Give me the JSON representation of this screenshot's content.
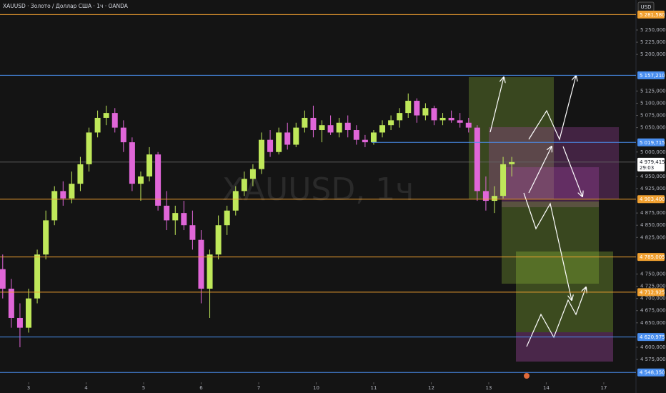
{
  "chart_data": {
    "type": "candlestick",
    "title": "XAUUSD · Золото / Доллар США · 1ч · OANDA",
    "watermark": "XAUUSD, 1ч",
    "currency": "USD",
    "up_color": "#bfe85a",
    "down_color": "#e066d8",
    "xlim": [
      -0.497,
      10.56
    ],
    "xticks": [
      {
        "value": 0,
        "label": "3"
      },
      {
        "value": 1,
        "label": "4"
      },
      {
        "value": 2,
        "label": "5"
      },
      {
        "value": 3,
        "label": "6"
      },
      {
        "value": 4,
        "label": "7"
      },
      {
        "value": 5,
        "label": "10"
      },
      {
        "value": 6,
        "label": "11"
      },
      {
        "value": 7,
        "label": "12"
      },
      {
        "value": 8,
        "label": "13"
      },
      {
        "value": 9,
        "label": "14"
      },
      {
        "value": 10,
        "label": "17"
      }
    ],
    "ylim": [
      4528.2,
      5311.5
    ],
    "yticks": [
      {
        "value": 5250,
        "label": "5 250,000"
      },
      {
        "value": 5225,
        "label": "5 225,000"
      },
      {
        "value": 5200,
        "label": "5 200,000"
      },
      {
        "value": 5125,
        "label": "5 125,000"
      },
      {
        "value": 5100,
        "label": "5 100,000"
      },
      {
        "value": 5075,
        "label": "5 075,000"
      },
      {
        "value": 5050,
        "label": "5 050,000"
      },
      {
        "value": 5000,
        "label": "5 000,000"
      },
      {
        "value": 4950,
        "label": "4 950,000"
      },
      {
        "value": 4925,
        "label": "4 925,000"
      },
      {
        "value": 4875,
        "label": "4 875,000"
      },
      {
        "value": 4850,
        "label": "4 850,000"
      },
      {
        "value": 4825,
        "label": "4 825,000"
      },
      {
        "value": 4750,
        "label": "4 750,000"
      },
      {
        "value": 4725,
        "label": "4 725,000"
      },
      {
        "value": 4700,
        "label": "4 700,000"
      },
      {
        "value": 4675,
        "label": "4 675,000"
      },
      {
        "value": 4650,
        "label": "4 650,000"
      },
      {
        "value": 4600,
        "label": "4 600,000"
      },
      {
        "value": 4575,
        "label": "4 575,000"
      }
    ],
    "levels": [
      {
        "value": 5281.58,
        "label": "5 281,580",
        "color": "#f0a030"
      },
      {
        "value": 5157.21,
        "label": "5 157,210",
        "color": "#4a8ff0"
      },
      {
        "value": 5019.715,
        "label": "5 019,715",
        "color": "#4a8ff0"
      },
      {
        "value": 4903.4,
        "label": "4 903,400",
        "color": "#f0a030"
      },
      {
        "value": 4785.005,
        "label": "4 785,005",
        "color": "#f0a030"
      },
      {
        "value": 4712.925,
        "label": "4 712,925",
        "color": "#f0a030"
      },
      {
        "value": 4620.975,
        "label": "4 620,975",
        "color": "#4a8ff0"
      },
      {
        "value": 4548.35,
        "label": "4 548,350",
        "color": "#4a8ff0"
      }
    ],
    "current_price": {
      "value": 4979.415,
      "label": "4 979,415",
      "countdown": "29:03"
    },
    "x": [
      -0.45,
      -0.3,
      -0.15,
      0,
      0.15,
      0.3,
      0.45,
      0.6,
      0.75,
      0.9,
      1.05,
      1.2,
      1.35,
      1.5,
      1.65,
      1.8,
      1.95,
      2.1,
      2.25,
      2.4,
      2.55,
      2.7,
      2.85,
      3,
      3.15,
      3.3,
      3.45,
      3.6,
      3.75,
      3.9,
      4.05,
      4.2,
      4.35,
      4.5,
      4.65,
      4.8,
      4.95,
      5.1,
      5.25,
      5.4,
      5.55,
      5.7,
      5.85,
      6,
      6.15,
      6.3,
      6.45,
      6.6,
      6.75,
      6.9,
      7.05,
      7.2,
      7.35,
      7.5,
      7.65,
      7.8,
      7.95,
      8.1,
      8.25,
      8.4
    ],
    "open": [
      4760,
      4720,
      4660,
      4640,
      4700,
      4790,
      4860,
      4920,
      4905,
      4935,
      4975,
      5040,
      5070,
      5080,
      5050,
      5020,
      4935,
      4950,
      4995,
      4890,
      4860,
      4875,
      4850,
      4820,
      4720,
      4790,
      4850,
      4880,
      4920,
      4945,
      4965,
      5025,
      5000,
      5040,
      5015,
      5050,
      5070,
      5045,
      5055,
      5040,
      5060,
      5045,
      5025,
      5020,
      5040,
      5055,
      5065,
      5080,
      5105,
      5075,
      5090,
      5065,
      5070,
      5065,
      5060,
      5050,
      4920,
      4900,
      4910,
      4975
    ],
    "high": [
      4790,
      4740,
      4690,
      4720,
      4800,
      4880,
      4930,
      4940,
      4960,
      4990,
      5050,
      5085,
      5095,
      5090,
      5065,
      5030,
      4960,
      5010,
      5000,
      4920,
      4890,
      4900,
      4880,
      4840,
      4800,
      4870,
      4890,
      4930,
      4960,
      4975,
      5040,
      5045,
      5050,
      5060,
      5060,
      5085,
      5095,
      5065,
      5075,
      5070,
      5075,
      5055,
      5035,
      5045,
      5065,
      5075,
      5090,
      5120,
      5110,
      5100,
      5095,
      5080,
      5085,
      5080,
      5070,
      5055,
      4950,
      4930,
      4990,
      4990
    ],
    "low": [
      4700,
      4640,
      4600,
      4630,
      4690,
      4780,
      4850,
      4890,
      4895,
      4920,
      4960,
      5030,
      5055,
      5040,
      5000,
      4920,
      4900,
      4940,
      4880,
      4840,
      4830,
      4840,
      4800,
      4690,
      4660,
      4780,
      4830,
      4870,
      4910,
      4930,
      4955,
      4990,
      4995,
      5005,
      5010,
      5040,
      5030,
      5020,
      5035,
      5030,
      5030,
      5015,
      5010,
      5015,
      5030,
      5045,
      5050,
      5070,
      5060,
      5065,
      5055,
      5055,
      5060,
      5050,
      5040,
      4900,
      4880,
      4875,
      4905,
      4950
    ],
    "close": [
      4720,
      4660,
      4640,
      4700,
      4790,
      4860,
      4920,
      4905,
      4935,
      4975,
      5040,
      5070,
      5080,
      5050,
      5020,
      4935,
      4950,
      4995,
      4890,
      4860,
      4875,
      4850,
      4820,
      4720,
      4790,
      4850,
      4880,
      4920,
      4945,
      4965,
      5025,
      5000,
      5040,
      5015,
      5050,
      5070,
      5045,
      5055,
      5040,
      5060,
      5045,
      5025,
      5020,
      5040,
      5055,
      5065,
      5080,
      5105,
      5075,
      5090,
      5065,
      5070,
      5065,
      5060,
      5050,
      4920,
      4900,
      4910,
      4975,
      4979.415
    ]
  }
}
